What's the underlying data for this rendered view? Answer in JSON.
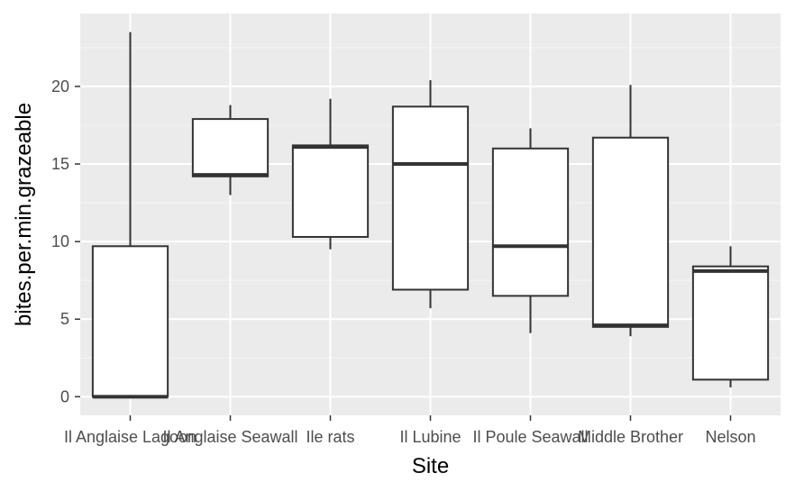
{
  "chart_data": {
    "type": "boxplot",
    "xlabel": "Site",
    "ylabel": "bites.per.min.grazeable",
    "ylim": [
      -1.2,
      24.7
    ],
    "yticks": [
      0,
      5,
      10,
      15,
      20
    ],
    "grid": true,
    "categories": [
      "Il Anglaise Lagoon",
      "Il Anglaise Seawall",
      "Ile rats",
      "Il Lubine",
      "Il Poule Seawall",
      "Middle Brother",
      "Nelson"
    ],
    "boxes": [
      {
        "whisker_low": 0.0,
        "q1": 0.0,
        "median": 0.0,
        "q3": 9.7,
        "whisker_high": 23.5
      },
      {
        "whisker_low": 13.0,
        "q1": 14.2,
        "median": 14.3,
        "q3": 17.9,
        "whisker_high": 18.8
      },
      {
        "whisker_low": 9.5,
        "q1": 10.3,
        "median": 16.1,
        "q3": 16.2,
        "whisker_high": 19.2
      },
      {
        "whisker_low": 5.7,
        "q1": 6.9,
        "median": 15.0,
        "q3": 18.7,
        "whisker_high": 20.4
      },
      {
        "whisker_low": 4.1,
        "q1": 6.5,
        "median": 9.7,
        "q3": 16.0,
        "whisker_high": 17.3
      },
      {
        "whisker_low": 3.9,
        "q1": 4.5,
        "median": 4.6,
        "q3": 16.7,
        "whisker_high": 20.1
      },
      {
        "whisker_low": 0.6,
        "q1": 1.1,
        "median": 8.1,
        "q3": 8.4,
        "whisker_high": 9.7
      }
    ],
    "colors": {
      "panel_background": "#ebebeb",
      "grid_major": "#ffffff",
      "grid_minor": "#f5f5f5",
      "box_fill": "#ffffff",
      "box_line": "#333333",
      "tick_text": "#4d4d4d",
      "axis_text": "#000000"
    }
  }
}
